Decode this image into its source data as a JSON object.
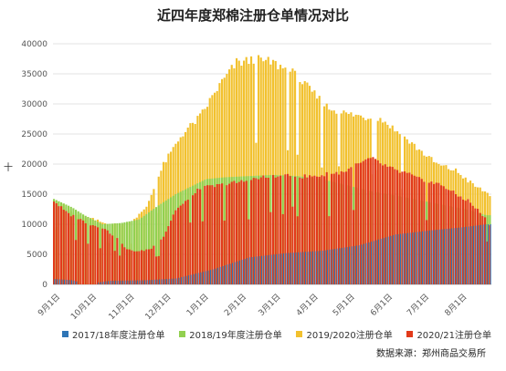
{
  "title": "近四年度郑棉注册仓单情况对比",
  "ylabel_text": "十",
  "source_text": "数据来源：郑州商品交易所",
  "colors": {
    "s2017": "#2e75b6",
    "s2018": "#92d050",
    "s2019": "#f2c12e",
    "s2020": "#e23a1a",
    "grid": "#e3e3e3",
    "axis": "#bfbfbf"
  },
  "chart_data": {
    "type": "bar",
    "title": "近四年度郑棉注册仓单情况对比",
    "xlabel": "",
    "ylabel": "十",
    "ylim": [
      0,
      40000
    ],
    "yticks": [
      0,
      5000,
      10000,
      15000,
      20000,
      25000,
      30000,
      35000,
      40000
    ],
    "x_tick_labels": [
      "9月1日",
      "10月1日",
      "11月1日",
      "12月1日",
      "1月1日",
      "2月1日",
      "3月1日",
      "4月1日",
      "5月1日",
      "6月1日",
      "7月1日",
      "8月1日"
    ],
    "x_range_days": [
      0,
      360
    ],
    "grid": true,
    "legend_position": "bottom",
    "series": [
      {
        "name": "2017/18年度注册仓单",
        "color": "#2e75b6",
        "points": [
          [
            0,
            900
          ],
          [
            15,
            700
          ],
          [
            25,
            0
          ],
          [
            45,
            600
          ],
          [
            75,
            700
          ],
          [
            100,
            1000
          ],
          [
            130,
            2500
          ],
          [
            160,
            4500
          ],
          [
            190,
            5200
          ],
          [
            220,
            5600
          ],
          [
            250,
            6500
          ],
          [
            280,
            8300
          ],
          [
            310,
            9000
          ],
          [
            335,
            9500
          ],
          [
            355,
            10000
          ]
        ]
      },
      {
        "name": "2018/19年度注册仓单",
        "color": "#92d050",
        "points": [
          [
            0,
            14200
          ],
          [
            15,
            12800
          ],
          [
            25,
            11500
          ],
          [
            40,
            10000
          ],
          [
            55,
            10200
          ],
          [
            70,
            10800
          ],
          [
            85,
            13000
          ],
          [
            100,
            15000
          ],
          [
            110,
            16000
          ],
          [
            125,
            17500
          ],
          [
            140,
            17800
          ],
          [
            160,
            18000
          ],
          [
            180,
            18200
          ],
          [
            200,
            18000
          ],
          [
            220,
            17500
          ],
          [
            240,
            16500
          ],
          [
            260,
            15500
          ],
          [
            280,
            14800
          ],
          [
            300,
            14000
          ],
          [
            320,
            13200
          ],
          [
            340,
            12400
          ],
          [
            355,
            11500
          ]
        ]
      },
      {
        "name": "2019/2020注册仓单",
        "color": "#f2c12e",
        "points": [
          [
            0,
            14500
          ],
          [
            15,
            12000
          ],
          [
            30,
            11000
          ],
          [
            45,
            10000
          ],
          [
            60,
            10000
          ],
          [
            75,
            12500
          ],
          [
            90,
            20000
          ],
          [
            105,
            25000
          ],
          [
            120,
            28000
          ],
          [
            135,
            33000
          ],
          [
            150,
            37000
          ],
          [
            165,
            37500
          ],
          [
            180,
            37000
          ],
          [
            195,
            35500
          ],
          [
            210,
            32500
          ],
          [
            225,
            29500
          ],
          [
            240,
            28500
          ],
          [
            255,
            28000
          ],
          [
            270,
            27500
          ],
          [
            285,
            25000
          ],
          [
            300,
            22500
          ],
          [
            315,
            20000
          ],
          [
            330,
            19000
          ],
          [
            345,
            16500
          ],
          [
            358,
            15000
          ]
        ]
      },
      {
        "name": "2020/21注册仓单",
        "color": "#e23a1a",
        "points": [
          [
            0,
            14000
          ],
          [
            10,
            12000
          ],
          [
            20,
            11000
          ],
          [
            30,
            10000
          ],
          [
            40,
            9500
          ],
          [
            50,
            8000
          ],
          [
            60,
            5800
          ],
          [
            70,
            5500
          ],
          [
            80,
            6000
          ],
          [
            90,
            8000
          ],
          [
            100,
            12500
          ],
          [
            110,
            14000
          ],
          [
            120,
            16000
          ],
          [
            135,
            16500
          ],
          [
            150,
            17000
          ],
          [
            170,
            17800
          ],
          [
            190,
            18000
          ],
          [
            210,
            18000
          ],
          [
            230,
            18500
          ],
          [
            240,
            19000
          ],
          [
            250,
            20000
          ],
          [
            260,
            21000
          ],
          [
            270,
            20000
          ],
          [
            280,
            19000
          ],
          [
            290,
            18500
          ],
          [
            300,
            17500
          ],
          [
            310,
            17000
          ],
          [
            320,
            16500
          ],
          [
            330,
            15000
          ],
          [
            340,
            14000
          ],
          [
            350,
            12000
          ],
          [
            358,
            10000
          ]
        ]
      }
    ]
  }
}
